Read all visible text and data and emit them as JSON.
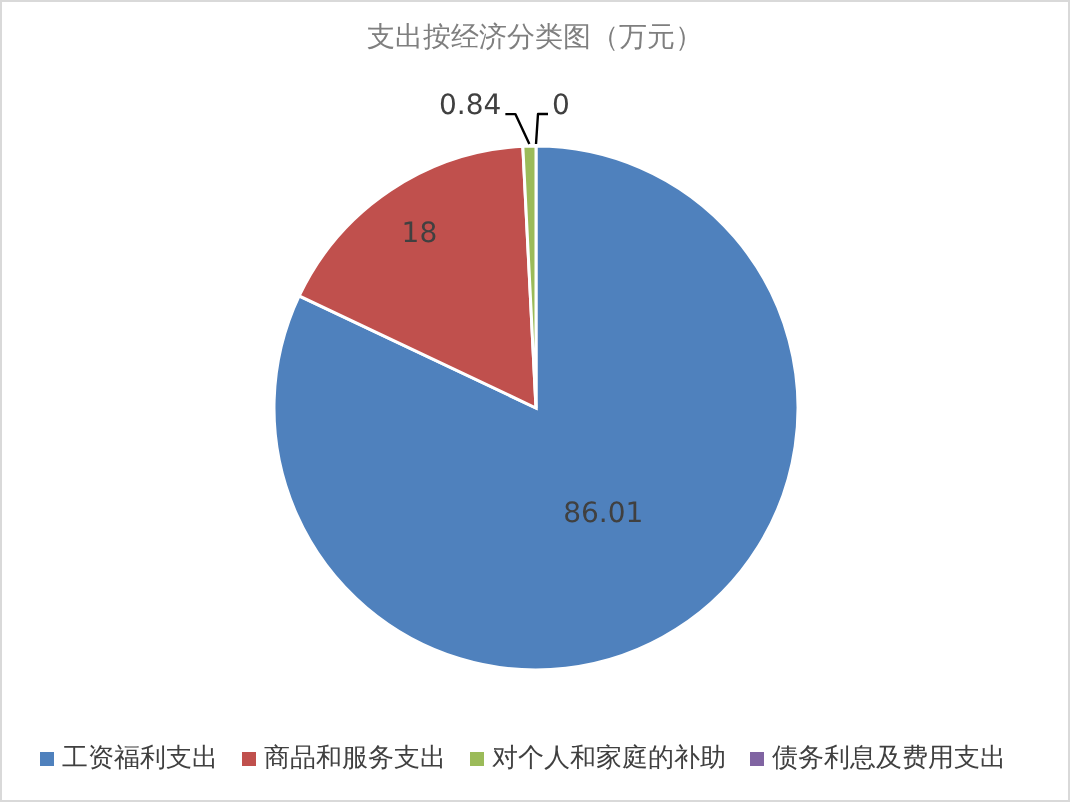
{
  "chart_data": {
    "type": "pie",
    "title": "支出按经济分类图（万元）",
    "categories": [
      "工资福利支出",
      "商品和服务支出",
      "对个人和家庭的补助",
      "债务利息及费用支出"
    ],
    "values": [
      86.01,
      18,
      0.84,
      0
    ],
    "value_labels": [
      "86.01",
      "18",
      "0.84",
      "0"
    ],
    "colors": [
      "#4f81bd",
      "#c0504d",
      "#9bbb59",
      "#8064a2"
    ],
    "legend": "bottom"
  }
}
